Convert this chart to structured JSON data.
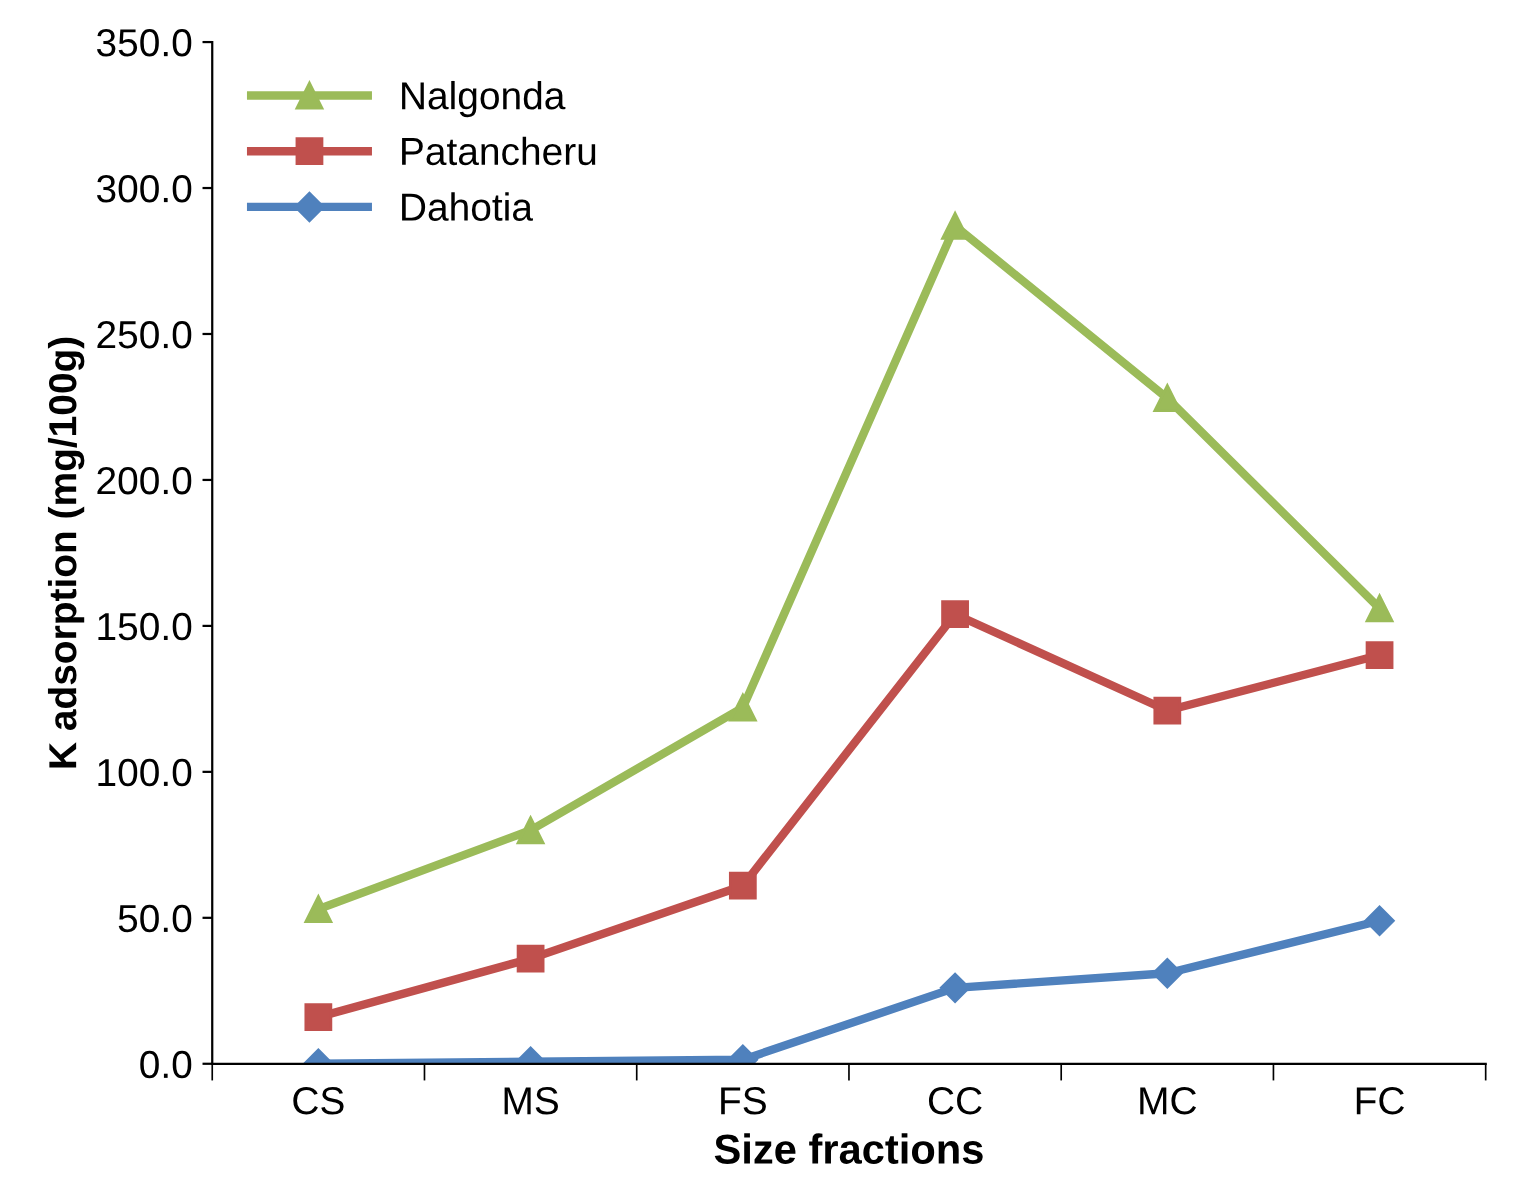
{
  "chart_data": {
    "type": "line",
    "xlabel": "Size fractions",
    "ylabel": "K adsorption (mg/100g)",
    "categories": [
      "CS",
      "MS",
      "FS",
      "CC",
      "MC",
      "FC"
    ],
    "series": [
      {
        "name": "Nalgonda",
        "color": "#9bbb59",
        "marker": "triangle",
        "values": [
          53,
          80,
          122,
          287,
          228,
          156
        ]
      },
      {
        "name": "Patancheru",
        "color": "#c0504d",
        "marker": "square",
        "values": [
          16,
          36,
          61,
          154,
          121,
          140
        ]
      },
      {
        "name": "Dahotia",
        "color": "#4f81bd",
        "marker": "diamond",
        "values": [
          0,
          0.7,
          1.4,
          26,
          31,
          49
        ]
      }
    ],
    "ylim": [
      0,
      350
    ],
    "yticks": [
      {
        "value": 0,
        "label": "0.0"
      },
      {
        "value": 50,
        "label": "50.0"
      },
      {
        "value": 100,
        "label": "100.0"
      },
      {
        "value": 150,
        "label": "150.0"
      },
      {
        "value": 200,
        "label": "200.0"
      },
      {
        "value": 250,
        "label": "250.0"
      },
      {
        "value": 300,
        "label": "300.0"
      },
      {
        "value": 350,
        "label": "350.0"
      }
    ],
    "legend": "top left",
    "grid": false,
    "line_style": "solid"
  }
}
